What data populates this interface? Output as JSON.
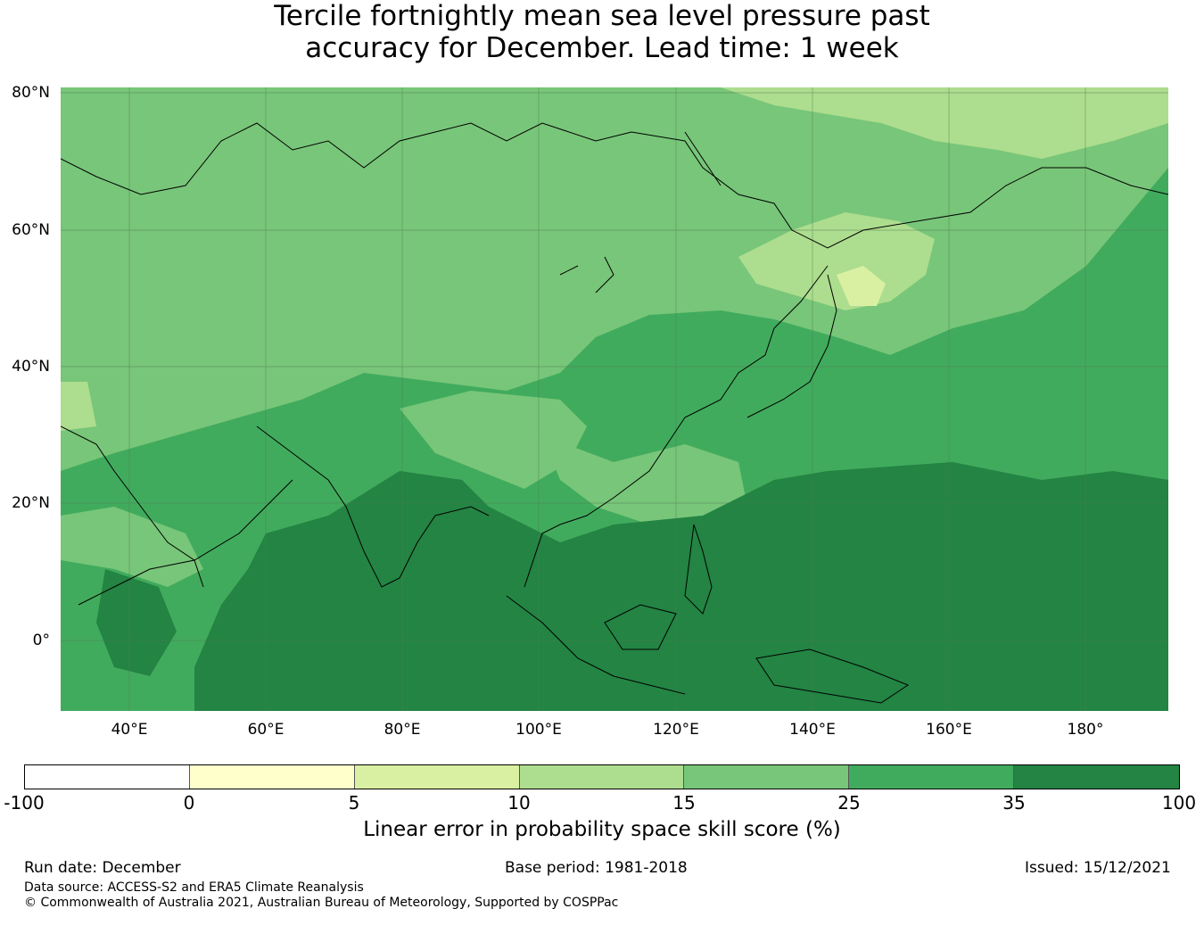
{
  "title": {
    "line1": "Tercile fortnightly mean sea level pressure past",
    "line2": "accuracy for December. Lead time: 1 week"
  },
  "map": {
    "lat_labels": [
      "80°N",
      "60°N",
      "40°N",
      "20°N",
      "0°"
    ],
    "lon_labels": [
      "40°E",
      "60°E",
      "80°E",
      "100°E",
      "120°E",
      "140°E",
      "160°E",
      "180°"
    ]
  },
  "colorbar": {
    "ticks": [
      "-100",
      "0",
      "5",
      "10",
      "15",
      "25",
      "35",
      "100"
    ],
    "colors": [
      "#ffffff",
      "#ffffcc",
      "#d9f0a3",
      "#addd8e",
      "#78c679",
      "#41ab5d",
      "#238443"
    ],
    "label": "Linear error in probability space skill score (%)"
  },
  "footer": {
    "run_date": "Run date: December",
    "base_period": "Base period: 1981-2018",
    "issued": "Issued: 15/12/2021",
    "data_source": "Data source: ACCESS-S2 and ERA5 Climate Reanalysis",
    "copyright": "© Commonwealth of Australia 2021, Australian Bureau of Meteorology, Supported by COSPPac"
  }
}
